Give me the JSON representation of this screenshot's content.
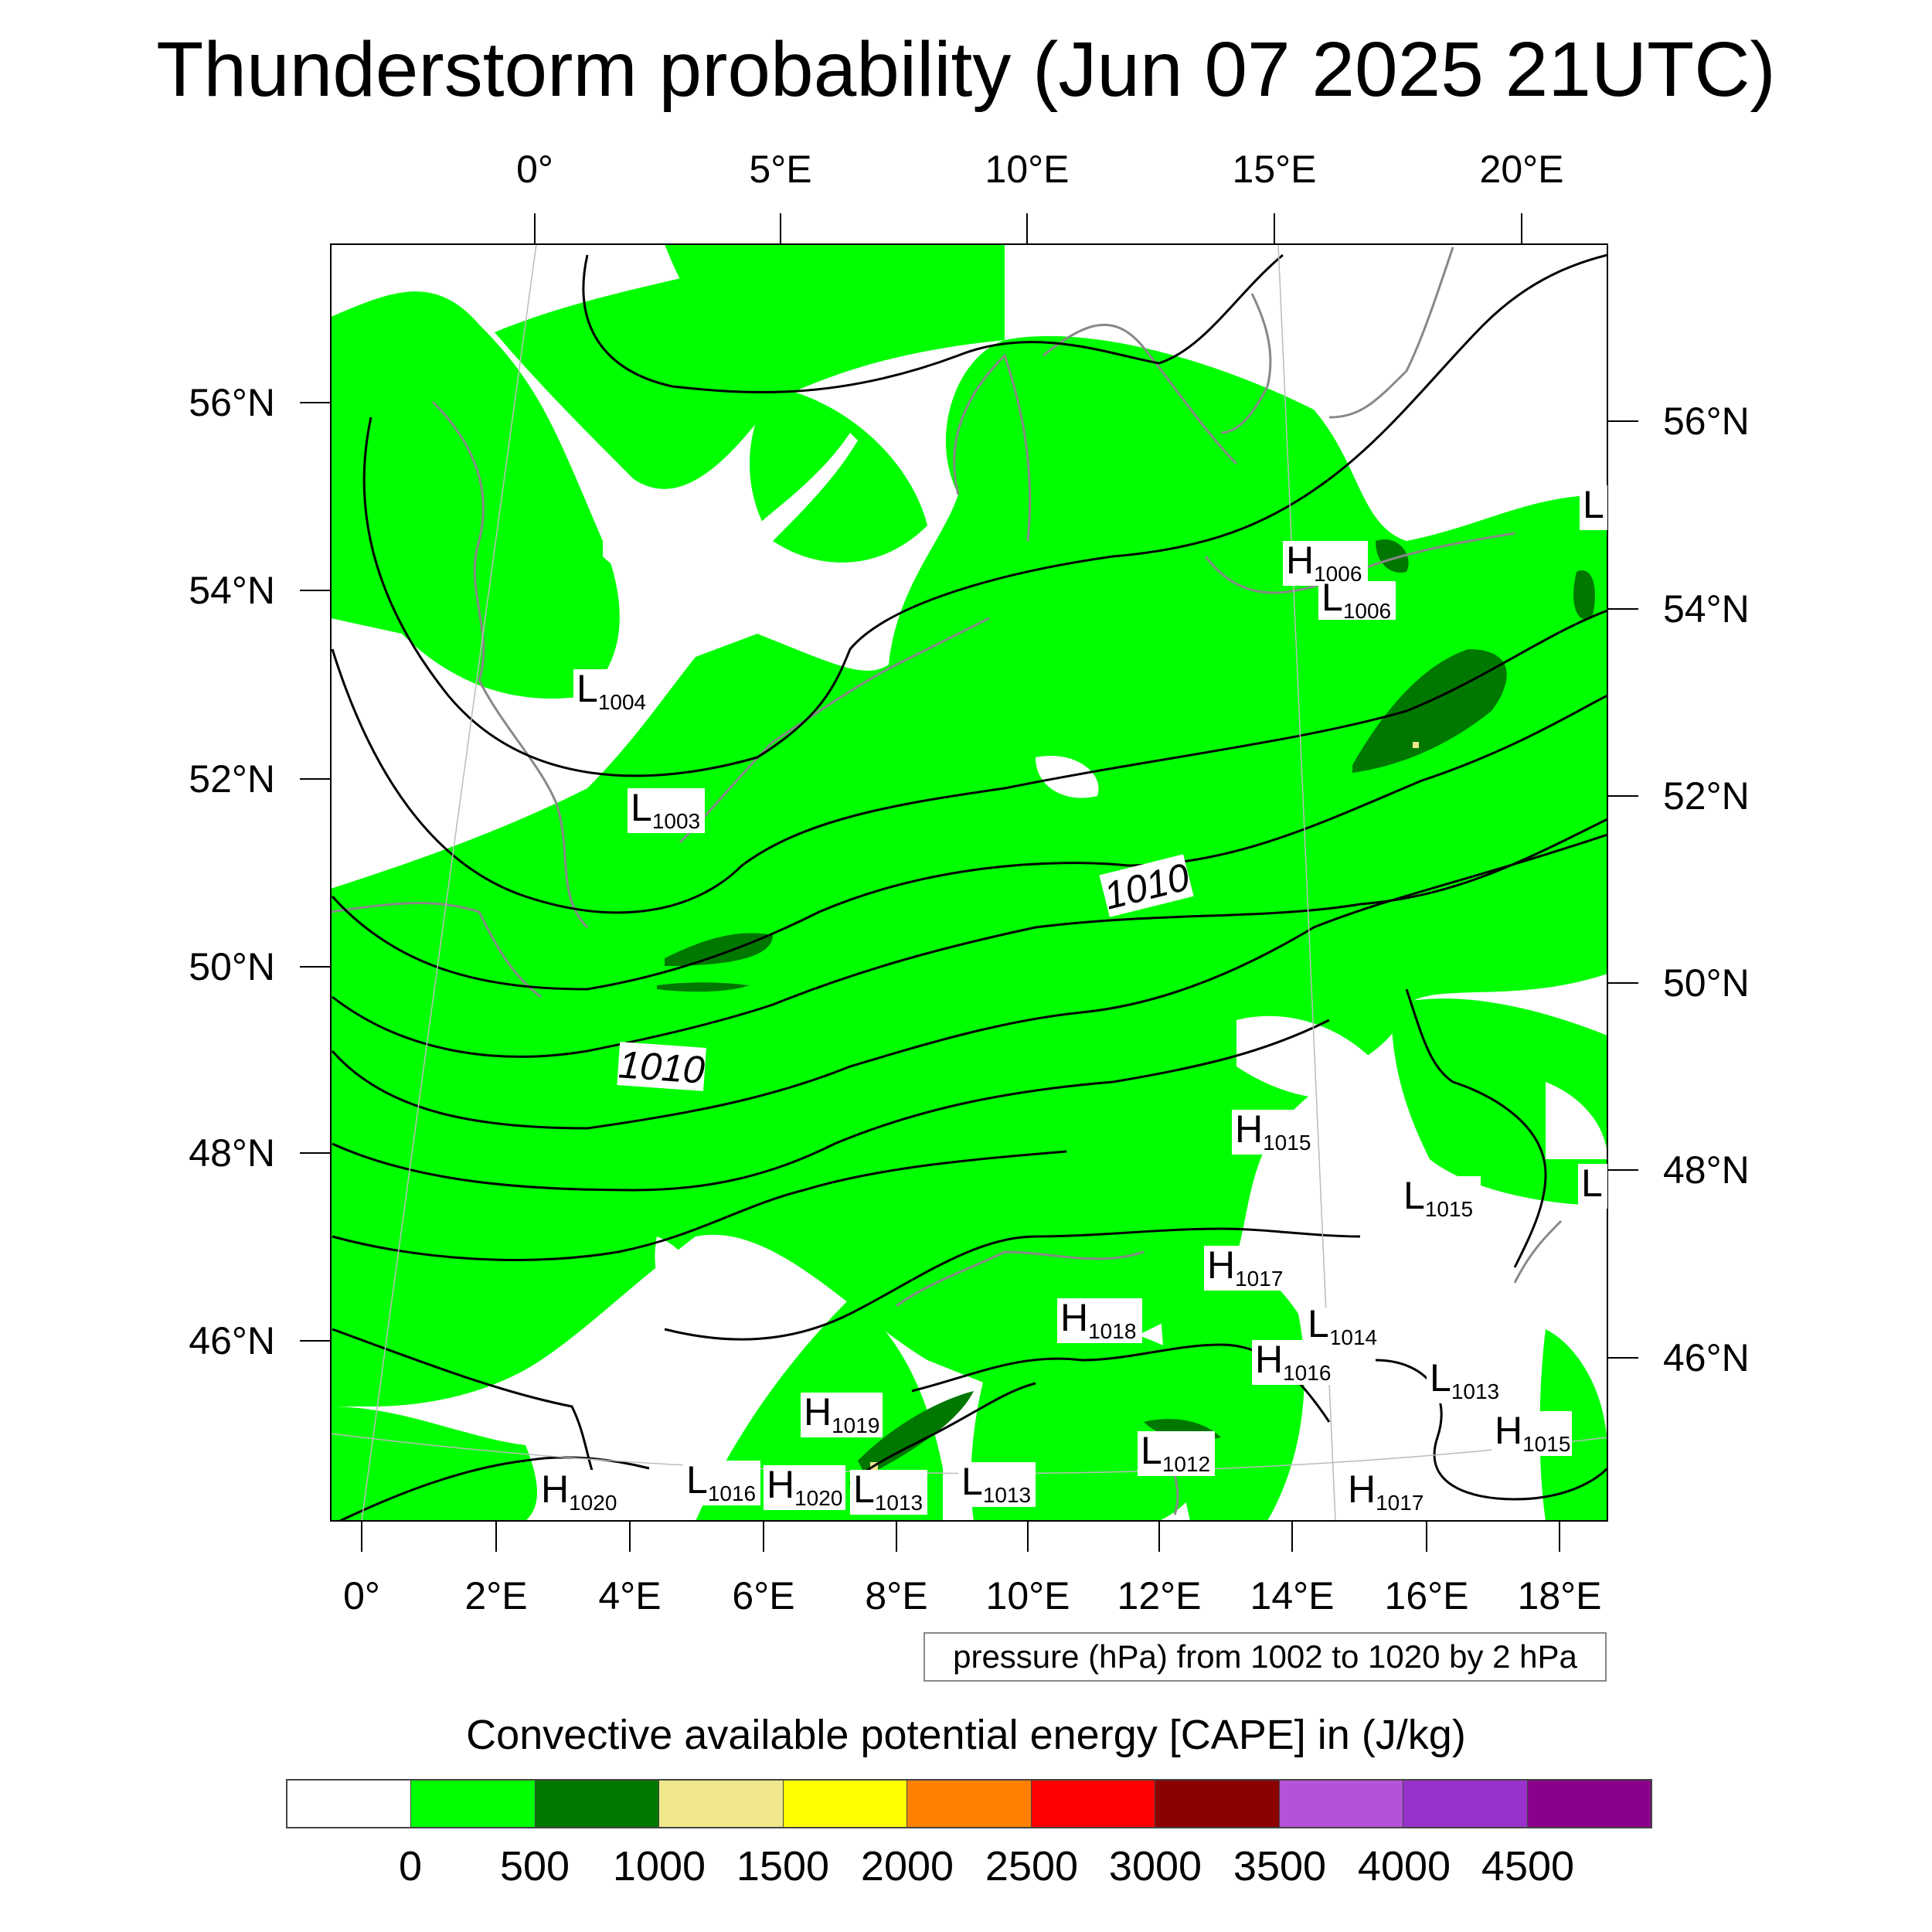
{
  "title": "Thunderstorm probability (Jun 07 2025 21UTC)",
  "top_lon_labels": [
    "0°",
    "5°E",
    "10°E",
    "15°E",
    "20°E"
  ],
  "bottom_lon_labels": [
    "0°",
    "2°E",
    "4°E",
    "6°E",
    "8°E",
    "10°E",
    "12°E",
    "14°E",
    "16°E",
    "18°E"
  ],
  "left_lat_labels": [
    "56°N",
    "54°N",
    "52°N",
    "50°N",
    "48°N",
    "46°N"
  ],
  "right_lat_labels": [
    "56°N",
    "54°N",
    "52°N",
    "50°N",
    "48°N",
    "46°N"
  ],
  "isobar_labels": [
    "1010",
    "1010"
  ],
  "pressure_centers": [
    {
      "letter": "L",
      "value": "1004"
    },
    {
      "letter": "L",
      "value": "1003"
    },
    {
      "letter": "H",
      "value": "1006"
    },
    {
      "letter": "L",
      "value": "1006"
    },
    {
      "letter": "L",
      "value": ""
    },
    {
      "letter": "H",
      "value": "1015"
    },
    {
      "letter": "L",
      "value": "1015"
    },
    {
      "letter": "L",
      "value": ""
    },
    {
      "letter": "H",
      "value": "1017"
    },
    {
      "letter": "H",
      "value": "1018"
    },
    {
      "letter": "L",
      "value": "1014"
    },
    {
      "letter": "H",
      "value": "1016"
    },
    {
      "letter": "L",
      "value": "1013"
    },
    {
      "letter": "H",
      "value": "1019"
    },
    {
      "letter": "H",
      "value": "1015"
    },
    {
      "letter": "L",
      "value": "1012"
    },
    {
      "letter": "L",
      "value": "1016"
    },
    {
      "letter": "H",
      "value": "1020"
    },
    {
      "letter": "L",
      "value": "1013"
    },
    {
      "letter": "L",
      "value": "1013"
    },
    {
      "letter": "H",
      "value": "1020"
    },
    {
      "letter": "H",
      "value": "1017"
    }
  ],
  "pressure_note": "pressure (hPa) from 1002 to 1020 by 2 hPa",
  "colorbar": {
    "title": "Convective available potential energy [CAPE] in (J/kg)",
    "colors": [
      "#ffffff",
      "#00ff00",
      "#007800",
      "#f0e68c",
      "#ffff00",
      "#ff8000",
      "#ff0000",
      "#8b0000",
      "#b452d8",
      "#9932cc",
      "#8b008b"
    ],
    "tick_labels": [
      "0",
      "500",
      "1000",
      "1500",
      "2000",
      "2500",
      "3000",
      "3500",
      "4000",
      "4500"
    ]
  },
  "fill_colors": {
    "cape_low": "#00ff00",
    "cape_mid": "#007800",
    "cape_high": "#f0e68c",
    "coastline": "#888888",
    "isobar": "#000000"
  }
}
